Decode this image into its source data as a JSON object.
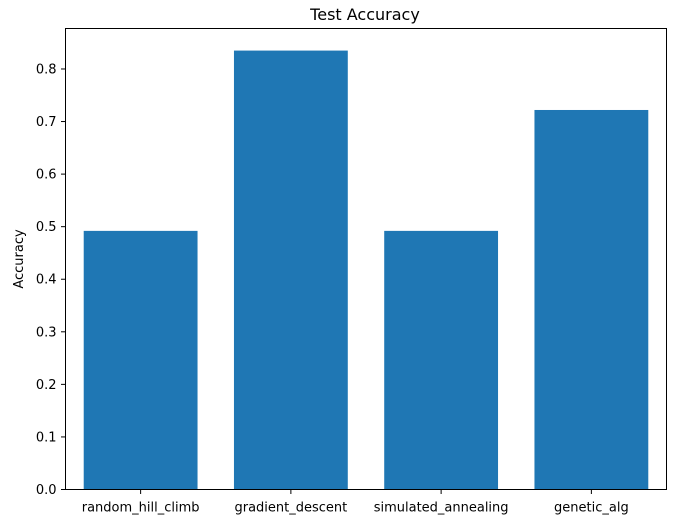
{
  "chart_data": {
    "type": "bar",
    "title": "Test Accuracy",
    "xlabel": "",
    "ylabel": "Accuracy",
    "categories": [
      "random_hill_climb",
      "gradient_descent",
      "simulated_annealing",
      "genetic_alg"
    ],
    "values": [
      0.492,
      0.835,
      0.492,
      0.722
    ],
    "ylim": [
      0,
      0.877
    ],
    "yticks": [
      "0.0",
      "0.1",
      "0.2",
      "0.3",
      "0.4",
      "0.5",
      "0.6",
      "0.7",
      "0.8"
    ],
    "bar_color": "#1f77b4",
    "grid": false,
    "legend": "none"
  }
}
